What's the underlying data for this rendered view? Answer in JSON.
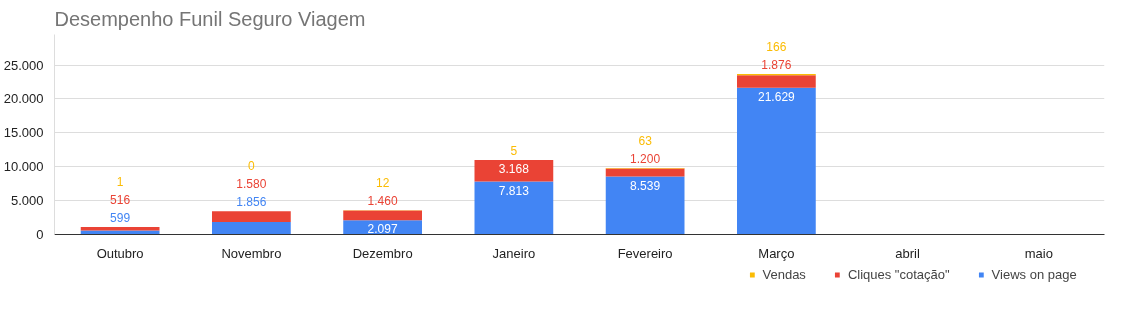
{
  "chart_data": {
    "type": "bar",
    "title": "Desempenho Funil Seguro Viagem",
    "stacked": true,
    "categories": [
      "Outubro",
      "Novembro",
      "Dezembro",
      "Janeiro",
      "Fevereiro",
      "Março",
      "abril",
      "maio"
    ],
    "series": [
      {
        "name": "Views on page",
        "color": "#4285f4",
        "values": [
          599,
          1856,
          2097,
          7813,
          8539,
          21629,
          null,
          null
        ],
        "value_labels": [
          "599",
          "1.856",
          "2.097",
          "7.813",
          "8.539",
          "21.629",
          null,
          null
        ]
      },
      {
        "name": "Cliques \"cotação\"",
        "color": "#ea4335",
        "values": [
          516,
          1580,
          1460,
          3168,
          1200,
          1876,
          null,
          null
        ],
        "value_labels": [
          "516",
          "1.580",
          "1.460",
          "3.168",
          "1.200",
          "1.876",
          null,
          null
        ]
      },
      {
        "name": "Vendas",
        "color": "#fbbc04",
        "values": [
          1,
          0,
          12,
          5,
          63,
          166,
          null,
          null
        ],
        "value_labels": [
          "1",
          "0",
          "12",
          "5",
          "63",
          "166",
          null,
          null
        ]
      }
    ],
    "ylim": [
      0,
      29500
    ],
    "yticks": [
      0,
      {
        "value": 5000,
        "label": "5.000"
      },
      {
        "value": 10000,
        "label": "10.000"
      },
      {
        "value": 15000,
        "label": "15.000"
      },
      {
        "value": 20000,
        "label": "20.000"
      },
      {
        "value": 25000,
        "label": "25.000"
      }
    ],
    "grid": "y",
    "legend": "bottom right"
  }
}
